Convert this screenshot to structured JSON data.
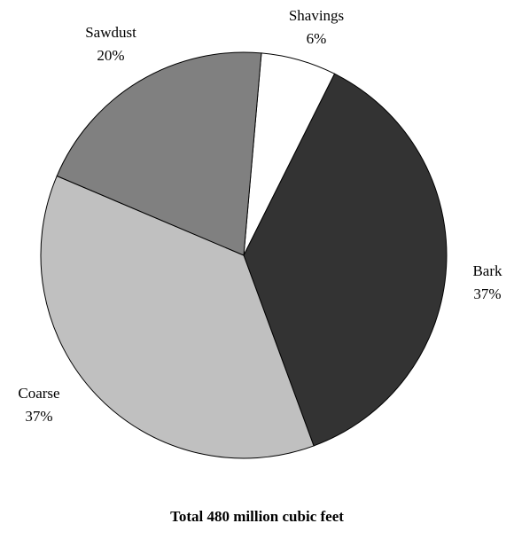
{
  "chart_data": {
    "type": "pie",
    "slices": [
      {
        "label": "Shavings",
        "value": 6,
        "display": "6%",
        "color": "#ffffff"
      },
      {
        "label": "Bark",
        "value": 37,
        "display": "37%",
        "color": "#333333"
      },
      {
        "label": "Coarse",
        "value": 37,
        "display": "37%",
        "color": "#c0c0c0"
      },
      {
        "label": "Sawdust",
        "value": 20,
        "display": "20%",
        "color": "#808080"
      }
    ],
    "start": "clockwise from near top",
    "total_label": "Total 480 million cubic feet",
    "legend": "none (labels beside slices)"
  }
}
